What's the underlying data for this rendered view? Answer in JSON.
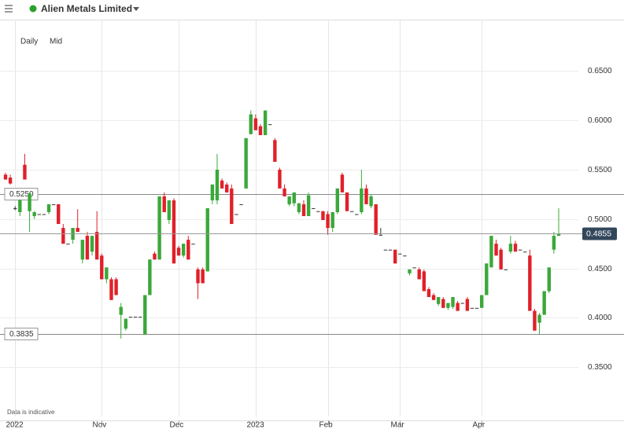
{
  "chart_data": {
    "type": "candlestick",
    "title": "Alien Metals Limited",
    "interval": "Daily",
    "price_type": "Mid",
    "footnote": "Data is indicative",
    "up_color": "#3aa83a",
    "down_color": "#e0202a",
    "ylim": [
      0.3,
      0.702
    ],
    "yticks": [
      {
        "value": 0.35,
        "label": "0.3500"
      },
      {
        "value": 0.4,
        "label": "0.4000"
      },
      {
        "value": 0.45,
        "label": "0.4500"
      },
      {
        "value": 0.5,
        "label": "0.5000"
      },
      {
        "value": 0.55,
        "label": "0.5500"
      },
      {
        "value": 0.6,
        "label": "0.6000"
      },
      {
        "value": 0.65,
        "label": "0.6500"
      }
    ],
    "reference_lines": [
      {
        "value": 0.525,
        "label": "0.5250"
      },
      {
        "value": 0.3835,
        "label": "0.3835"
      }
    ],
    "last_price": {
      "value": 0.4855,
      "label": "0.4855"
    },
    "categories": [
      null,
      null,
      "2022",
      null,
      null,
      null,
      null,
      null,
      null,
      null,
      null,
      null,
      null,
      null,
      null,
      null,
      null,
      null,
      null,
      null,
      "Nov",
      null,
      null,
      null,
      null,
      null,
      null,
      null,
      null,
      null,
      null,
      null,
      null,
      null,
      null,
      null,
      "Dec",
      null,
      null,
      null,
      null,
      null,
      null,
      null,
      null,
      null,
      null,
      null,
      null,
      null,
      null,
      null,
      "2023",
      null,
      null,
      null,
      null,
      null,
      null,
      null,
      null,
      null,
      null,
      null,
      null,
      null,
      null,
      "Feb",
      null,
      null,
      null,
      null,
      null,
      null,
      null,
      null,
      null,
      null,
      null,
      null,
      null,
      null,
      "Mar",
      null,
      null,
      null,
      null,
      null,
      null,
      null,
      null,
      null,
      null,
      null,
      null,
      null,
      null,
      null,
      null,
      "Apr",
      null,
      null,
      null,
      null,
      null,
      null,
      null,
      null,
      null,
      null,
      null,
      null,
      null,
      null,
      null,
      null
    ],
    "open": [
      0.545,
      0.542,
      0.511,
      0.507,
      0.555,
      0.508,
      0.503,
      0.505,
      0.505,
      0.507,
      0.515,
      0.515,
      0.491,
      0.475,
      0.479,
      0.491,
      0.459,
      0.483,
      0.467,
      0.487,
      0.463,
      0.439,
      0.439,
      0.439,
      0.403,
      0.389,
      0.401,
      0.401,
      0.401,
      0.383,
      0.423,
      0.465,
      0.459,
      0.523,
      0.499,
      0.519,
      0.471,
      0.463,
      0.479,
      0.475,
      0.449,
      0.449,
      0.447,
      0.519,
      0.519,
      0.539,
      0.535,
      0.531,
      0.505,
      0.515,
      0.531,
      0.586,
      0.602,
      0.594,
      0.585,
      0.596,
      0.58,
      0.55,
      0.531,
      0.515,
      0.516,
      0.507,
      0.515,
      0.503,
      0.511,
      0.508,
      0.508,
      0.505,
      0.491,
      0.507,
      0.545,
      0.527,
      0.508,
      0.505,
      0.507,
      0.531,
      0.513,
      0.515,
      0.484,
      0.469,
      0.469,
      0.469,
      0.465,
      0.463,
      0.445,
      0.451,
      0.449,
      0.447,
      0.429,
      0.423,
      0.414,
      0.419,
      0.41,
      0.411,
      0.415,
      0.415,
      0.419,
      0.41,
      0.41,
      0.41,
      0.423,
      0.451,
      0.475,
      0.469,
      0.449,
      0.467,
      0.475,
      0.469,
      0.467,
      0.463,
      0.407,
      0.395,
      0.403,
      0.427,
      0.469,
      0.483
    ],
    "high": [
      0.547,
      0.545,
      0.513,
      0.52,
      0.566,
      0.527,
      0.508,
      0.505,
      0.505,
      0.515,
      0.515,
      0.515,
      0.495,
      0.475,
      0.491,
      0.51,
      0.479,
      0.487,
      0.483,
      0.508,
      0.465,
      0.451,
      0.441,
      0.441,
      0.415,
      0.399,
      0.401,
      0.401,
      0.401,
      0.423,
      0.459,
      0.467,
      0.523,
      0.527,
      0.519,
      0.521,
      0.473,
      0.475,
      0.483,
      0.475,
      0.451,
      0.451,
      0.511,
      0.535,
      0.566,
      0.541,
      0.537,
      0.535,
      0.505,
      0.515,
      0.582,
      0.61,
      0.606,
      0.596,
      0.61,
      0.596,
      0.582,
      0.552,
      0.535,
      0.523,
      0.527,
      0.516,
      0.519,
      0.527,
      0.511,
      0.508,
      0.508,
      0.508,
      0.507,
      0.531,
      0.547,
      0.527,
      0.508,
      0.505,
      0.55,
      0.535,
      0.525,
      0.515,
      0.491,
      0.469,
      0.469,
      0.469,
      0.465,
      0.463,
      0.449,
      0.451,
      0.451,
      0.449,
      0.431,
      0.425,
      0.421,
      0.421,
      0.415,
      0.421,
      0.417,
      0.415,
      0.421,
      0.41,
      0.41,
      0.423,
      0.455,
      0.483,
      0.479,
      0.471,
      0.449,
      0.483,
      0.478,
      0.469,
      0.467,
      0.469,
      0.409,
      0.405,
      0.427,
      0.451,
      0.487,
      0.511
    ],
    "low": [
      0.54,
      0.535,
      0.509,
      0.503,
      0.54,
      0.487,
      0.5,
      0.505,
      0.505,
      0.505,
      0.515,
      0.495,
      0.475,
      0.475,
      0.475,
      0.487,
      0.455,
      0.459,
      0.463,
      0.459,
      0.439,
      0.435,
      0.418,
      0.423,
      0.379,
      0.387,
      0.401,
      0.401,
      0.401,
      0.383,
      0.423,
      0.459,
      0.459,
      0.507,
      0.495,
      0.455,
      0.463,
      0.461,
      0.459,
      0.475,
      0.419,
      0.435,
      0.447,
      0.515,
      0.515,
      0.531,
      0.527,
      0.495,
      0.505,
      0.515,
      0.531,
      0.586,
      0.59,
      0.585,
      0.585,
      0.596,
      0.558,
      0.531,
      0.523,
      0.513,
      0.513,
      0.505,
      0.503,
      0.503,
      0.511,
      0.508,
      0.499,
      0.484,
      0.487,
      0.505,
      0.527,
      0.508,
      0.508,
      0.505,
      0.505,
      0.515,
      0.511,
      0.484,
      0.484,
      0.469,
      0.469,
      0.455,
      0.465,
      0.463,
      0.443,
      0.451,
      0.439,
      0.427,
      0.421,
      0.418,
      0.412,
      0.41,
      0.408,
      0.409,
      0.407,
      0.415,
      0.407,
      0.41,
      0.41,
      0.41,
      0.423,
      0.451,
      0.463,
      0.449,
      0.449,
      0.465,
      0.467,
      0.469,
      0.467,
      0.407,
      0.387,
      0.383,
      0.403,
      0.425,
      0.465,
      0.483
    ],
    "close": [
      0.54,
      0.536,
      0.511,
      0.519,
      0.54,
      0.526,
      0.507,
      0.505,
      0.505,
      0.515,
      0.515,
      0.495,
      0.475,
      0.475,
      0.491,
      0.487,
      0.479,
      0.459,
      0.483,
      0.459,
      0.439,
      0.451,
      0.418,
      0.423,
      0.411,
      0.399,
      0.401,
      0.401,
      0.401,
      0.423,
      0.459,
      0.459,
      0.523,
      0.507,
      0.519,
      0.455,
      0.463,
      0.475,
      0.459,
      0.475,
      0.435,
      0.435,
      0.511,
      0.535,
      0.55,
      0.531,
      0.527,
      0.495,
      0.505,
      0.515,
      0.582,
      0.606,
      0.59,
      0.585,
      0.61,
      0.596,
      0.558,
      0.531,
      0.523,
      0.523,
      0.527,
      0.516,
      0.503,
      0.524,
      0.511,
      0.508,
      0.499,
      0.491,
      0.507,
      0.531,
      0.527,
      0.508,
      0.508,
      0.505,
      0.531,
      0.515,
      0.523,
      0.484,
      0.484,
      0.469,
      0.469,
      0.455,
      0.465,
      0.463,
      0.449,
      0.451,
      0.439,
      0.427,
      0.421,
      0.418,
      0.421,
      0.41,
      0.415,
      0.421,
      0.407,
      0.415,
      0.407,
      0.41,
      0.41,
      0.423,
      0.455,
      0.483,
      0.463,
      0.449,
      0.449,
      0.475,
      0.467,
      0.469,
      0.467,
      0.407,
      0.387,
      0.403,
      0.427,
      0.451,
      0.483,
      0.4855
    ]
  }
}
